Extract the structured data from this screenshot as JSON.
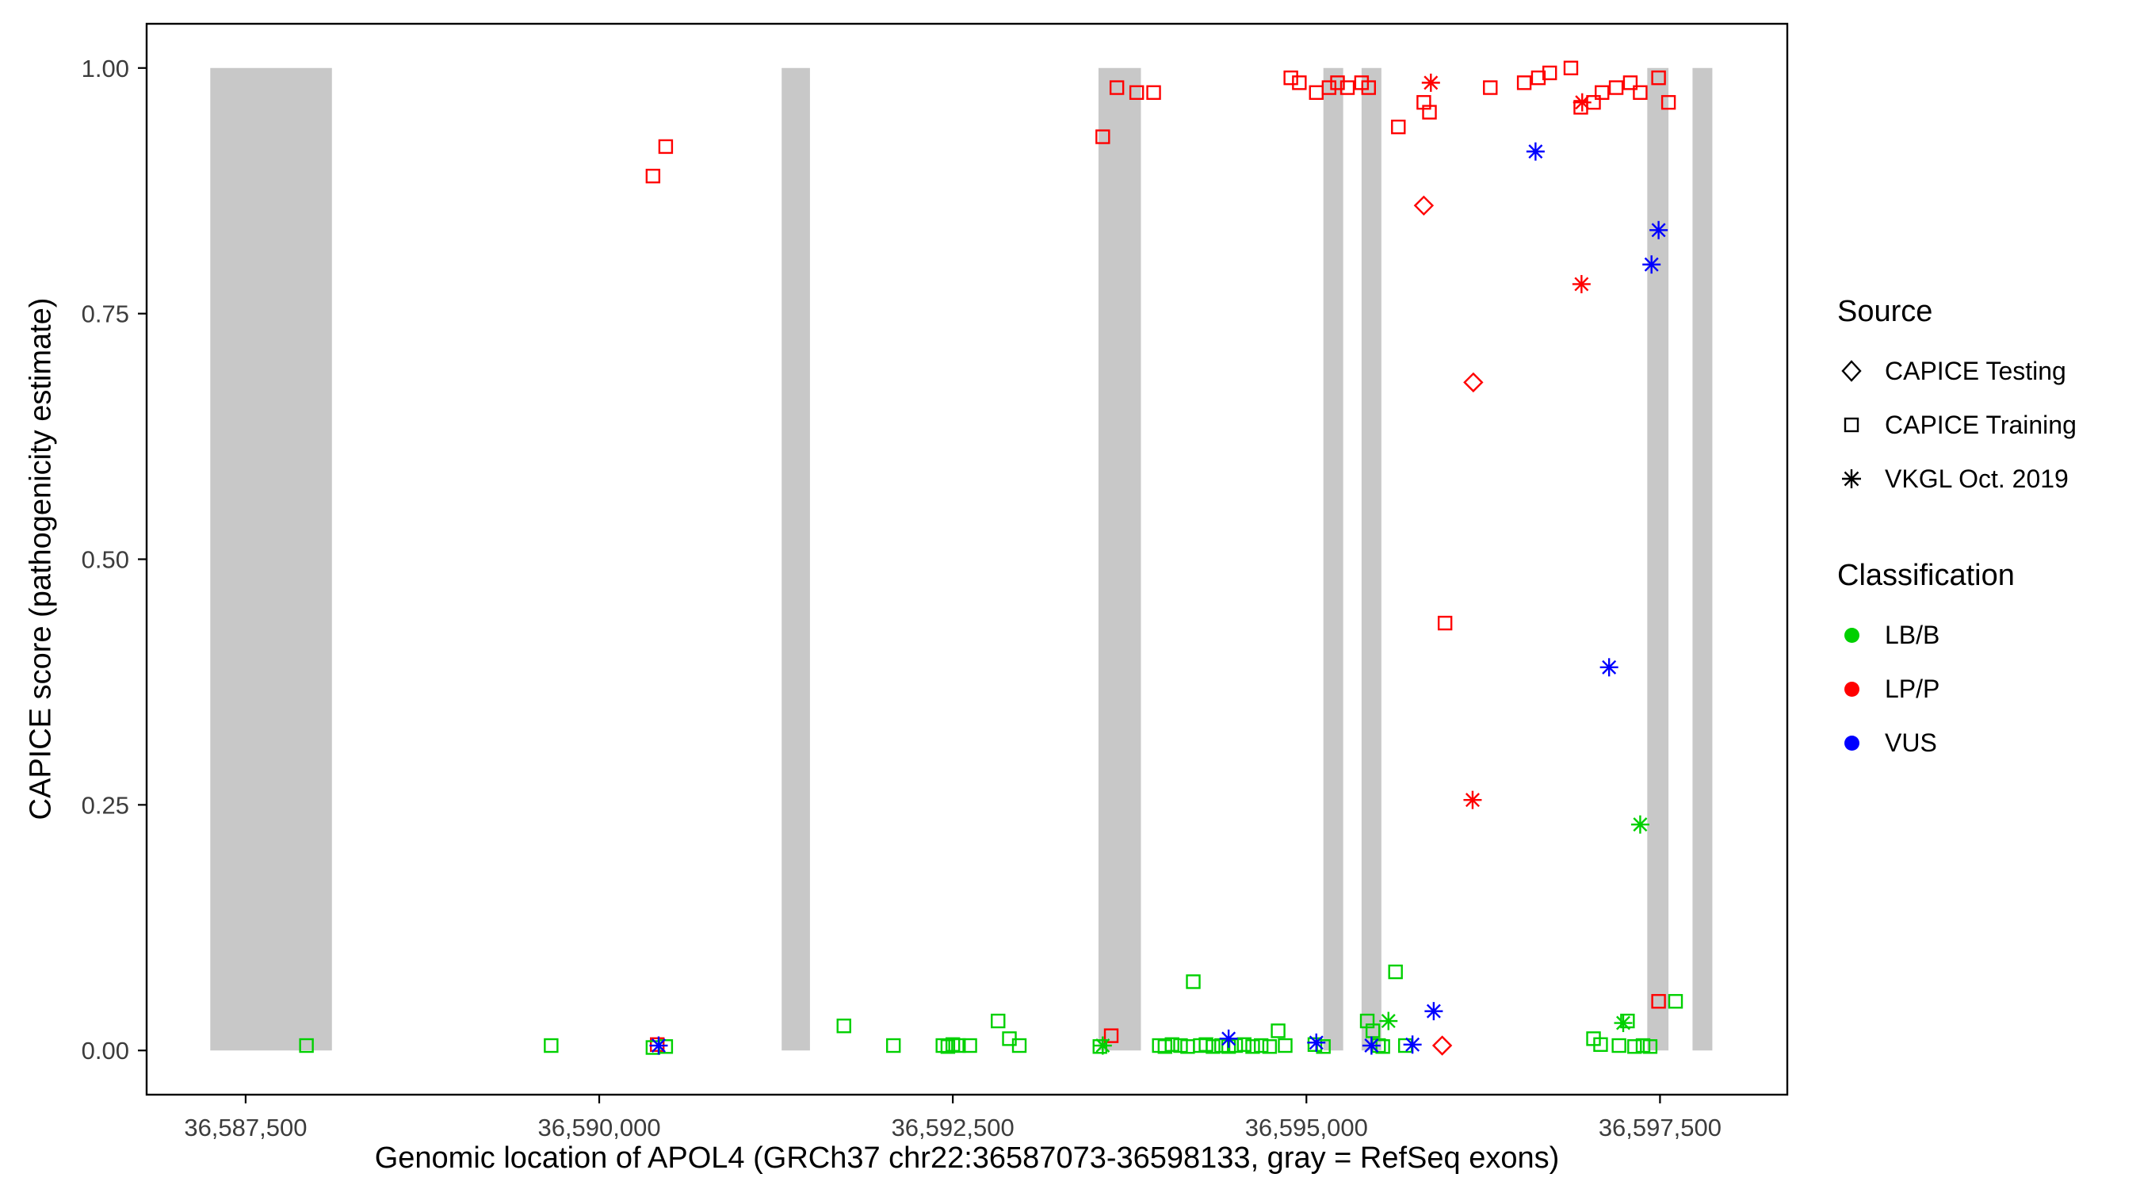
{
  "figure": {
    "background": "#FFFFFF"
  },
  "axes": {
    "x_title": "Genomic location of APOL4 (GRCh37 chr22:36587073-36598133, gray = RefSeq exons)",
    "y_title": "CAPICE score (pathogenicity estimate)"
  },
  "legend": {
    "source": {
      "title": "Source",
      "items": [
        {
          "label": "CAPICE Testing",
          "shape": "diamond"
        },
        {
          "label": "CAPICE Training",
          "shape": "square"
        },
        {
          "label": "VKGL Oct. 2019",
          "shape": "asterisk"
        }
      ]
    },
    "classification": {
      "title": "Classification",
      "items": [
        {
          "label": "LB/B",
          "color": "#00D000"
        },
        {
          "label": "LP/P",
          "color": "#FF0000"
        },
        {
          "label": "VUS",
          "color": "#0000FF"
        }
      ]
    }
  },
  "chart_data": {
    "type": "scatter",
    "title": "",
    "xlabel": "Genomic location of APOL4 (GRCh37 chr22:36587073-36598133, gray = RefSeq exons)",
    "ylabel": "CAPICE score (pathogenicity estimate)",
    "x_domain": [
      36586800,
      36598400
    ],
    "y_domain": [
      -0.045,
      1.045
    ],
    "ylim": [
      0,
      1
    ],
    "grid": false,
    "legend_position": "right",
    "x_ticks": [
      {
        "value": 36587500,
        "label": "36,587,500"
      },
      {
        "value": 36590000,
        "label": "36,590,000"
      },
      {
        "value": 36592500,
        "label": "36,592,500"
      },
      {
        "value": 36595000,
        "label": "36,595,000"
      },
      {
        "value": 36597500,
        "label": "36,597,500"
      }
    ],
    "y_ticks": [
      {
        "value": 0.0,
        "label": "0.00"
      },
      {
        "value": 0.25,
        "label": "0.25"
      },
      {
        "value": 0.5,
        "label": "0.50"
      },
      {
        "value": 0.75,
        "label": "0.75"
      },
      {
        "value": 1.0,
        "label": "1.00"
      }
    ],
    "exon_color": "#C8C8C8",
    "exons": [
      [
        36587250,
        36588110
      ],
      [
        36591290,
        36591490
      ],
      [
        36593530,
        36593830
      ],
      [
        36595120,
        36595260
      ],
      [
        36595390,
        36595530
      ],
      [
        36597410,
        36597560
      ],
      [
        36597730,
        36597870
      ]
    ],
    "series": [
      {
        "name": "CAPICE Training / LP/P",
        "source": "CAPICE Training",
        "classification": "LP/P",
        "shape": "square",
        "color": "#FF0000",
        "points": [
          [
            36590380,
            0.89
          ],
          [
            36590470,
            0.92
          ],
          [
            36593560,
            0.93
          ],
          [
            36593660,
            0.98
          ],
          [
            36593800,
            0.975
          ],
          [
            36593920,
            0.975
          ],
          [
            36594890,
            0.99
          ],
          [
            36594950,
            0.985
          ],
          [
            36595070,
            0.975
          ],
          [
            36595160,
            0.98
          ],
          [
            36595220,
            0.985
          ],
          [
            36595290,
            0.98
          ],
          [
            36595390,
            0.985
          ],
          [
            36595440,
            0.98
          ],
          [
            36595650,
            0.94
          ],
          [
            36595830,
            0.965
          ],
          [
            36595870,
            0.955
          ],
          [
            36595980,
            0.435
          ],
          [
            36596300,
            0.98
          ],
          [
            36596540,
            0.985
          ],
          [
            36596640,
            0.99
          ],
          [
            36596720,
            0.995
          ],
          [
            36596870,
            1.0
          ],
          [
            36596940,
            0.96
          ],
          [
            36597030,
            0.965
          ],
          [
            36597090,
            0.975
          ],
          [
            36597190,
            0.98
          ],
          [
            36597290,
            0.985
          ],
          [
            36597360,
            0.975
          ],
          [
            36597490,
            0.99
          ],
          [
            36597560,
            0.965
          ],
          [
            36590410,
            0.006
          ],
          [
            36593620,
            0.015
          ],
          [
            36597490,
            0.05
          ]
        ]
      },
      {
        "name": "CAPICE Training / LB/B",
        "source": "CAPICE Training",
        "classification": "LB/B",
        "shape": "square",
        "color": "#00D000",
        "points": [
          [
            36587930,
            0.005
          ],
          [
            36589660,
            0.005
          ],
          [
            36590380,
            0.003
          ],
          [
            36590470,
            0.004
          ],
          [
            36591730,
            0.025
          ],
          [
            36592080,
            0.005
          ],
          [
            36592430,
            0.005
          ],
          [
            36592465,
            0.004
          ],
          [
            36592500,
            0.006
          ],
          [
            36592540,
            0.005
          ],
          [
            36592620,
            0.005
          ],
          [
            36592820,
            0.03
          ],
          [
            36592900,
            0.012
          ],
          [
            36592970,
            0.005
          ],
          [
            36593540,
            0.004
          ],
          [
            36593960,
            0.005
          ],
          [
            36594000,
            0.004
          ],
          [
            36594050,
            0.006
          ],
          [
            36594110,
            0.005
          ],
          [
            36594160,
            0.004
          ],
          [
            36594200,
            0.07
          ],
          [
            36594250,
            0.005
          ],
          [
            36594290,
            0.006
          ],
          [
            36594340,
            0.004
          ],
          [
            36594400,
            0.005
          ],
          [
            36594450,
            0.004
          ],
          [
            36594500,
            0.005
          ],
          [
            36594560,
            0.006
          ],
          [
            36594620,
            0.004
          ],
          [
            36594680,
            0.005
          ],
          [
            36594740,
            0.004
          ],
          [
            36594800,
            0.02
          ],
          [
            36594850,
            0.005
          ],
          [
            36595060,
            0.006
          ],
          [
            36595120,
            0.004
          ],
          [
            36595430,
            0.03
          ],
          [
            36595470,
            0.02
          ],
          [
            36595510,
            0.005
          ],
          [
            36595540,
            0.004
          ],
          [
            36595630,
            0.08
          ],
          [
            36595700,
            0.005
          ],
          [
            36597030,
            0.012
          ],
          [
            36597080,
            0.006
          ],
          [
            36597210,
            0.005
          ],
          [
            36597270,
            0.03
          ],
          [
            36597320,
            0.004
          ],
          [
            36597380,
            0.005
          ],
          [
            36597430,
            0.004
          ],
          [
            36597610,
            0.05
          ]
        ]
      },
      {
        "name": "CAPICE Testing / LP/P",
        "source": "CAPICE Testing",
        "classification": "LP/P",
        "shape": "diamond",
        "color": "#FF0000",
        "points": [
          [
            36595830,
            0.86
          ],
          [
            36596180,
            0.68
          ],
          [
            36595960,
            0.005
          ]
        ]
      },
      {
        "name": "VKGL Oct. 2019 / LP/P",
        "source": "VKGL Oct. 2019",
        "classification": "LP/P",
        "shape": "asterisk",
        "color": "#FF0000",
        "points": [
          [
            36595880,
            0.985
          ],
          [
            36596950,
            0.965
          ],
          [
            36596945,
            0.78
          ],
          [
            36596175,
            0.255
          ]
        ]
      },
      {
        "name": "VKGL Oct. 2019 / VUS",
        "source": "VKGL Oct. 2019",
        "classification": "VUS",
        "shape": "asterisk",
        "color": "#0000FF",
        "points": [
          [
            36596620,
            0.915
          ],
          [
            36597490,
            0.835
          ],
          [
            36597440,
            0.8
          ],
          [
            36597140,
            0.39
          ],
          [
            36595900,
            0.04
          ],
          [
            36590420,
            0.005
          ],
          [
            36594450,
            0.012
          ],
          [
            36595070,
            0.008
          ],
          [
            36595460,
            0.005
          ],
          [
            36595750,
            0.006
          ]
        ]
      },
      {
        "name": "VKGL Oct. 2019 / LB/B",
        "source": "VKGL Oct. 2019",
        "classification": "LB/B",
        "shape": "asterisk",
        "color": "#00D000",
        "points": [
          [
            36593560,
            0.005
          ],
          [
            36595580,
            0.03
          ],
          [
            36597360,
            0.23
          ],
          [
            36597240,
            0.028
          ]
        ]
      }
    ]
  }
}
